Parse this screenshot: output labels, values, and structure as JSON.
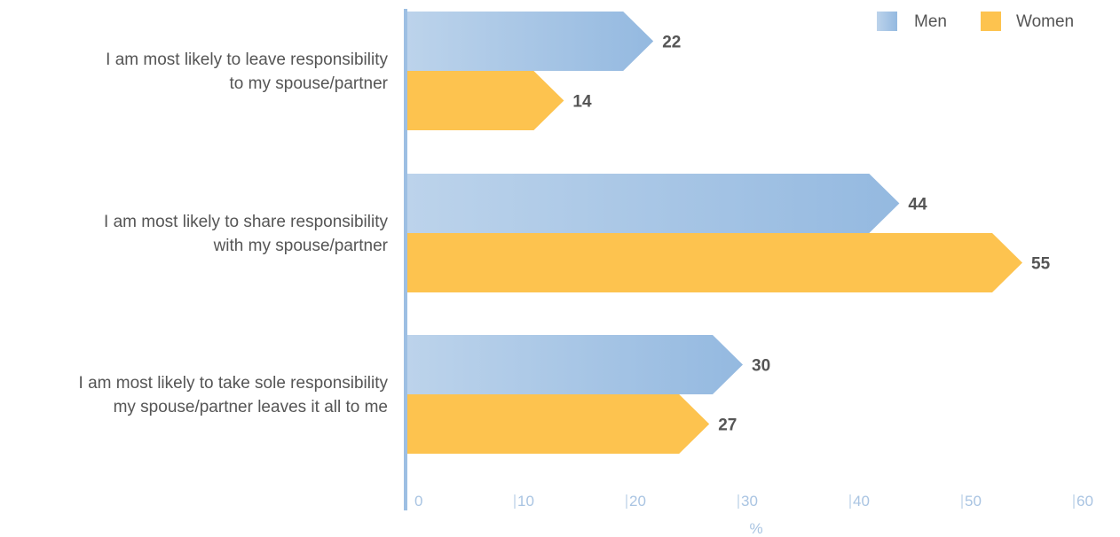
{
  "chart_data": {
    "type": "bar",
    "orientation": "horizontal",
    "categories": [
      [
        "I am most likely to leave responsibility",
        "to my spouse/partner"
      ],
      [
        "I am most likely to share responsibility",
        "with my spouse/partner"
      ],
      [
        "I am most likely to take sole responsibility",
        "my spouse/partner leaves it all to me"
      ]
    ],
    "series": [
      {
        "name": "Men",
        "values": [
          22,
          44,
          30
        ],
        "color": "#9dbfe3",
        "color_light": "#bcd3eb"
      },
      {
        "name": "Women",
        "values": [
          14,
          55,
          27
        ],
        "color": "#fdc34f"
      }
    ],
    "xlim": [
      0,
      60
    ],
    "x_ticks": [
      "0",
      "10",
      "20",
      "30",
      "40",
      "50",
      "60"
    ],
    "xlabel": "%",
    "axis_color": "#9dbfe3",
    "legend_placement": "top-right",
    "grid": false
  }
}
